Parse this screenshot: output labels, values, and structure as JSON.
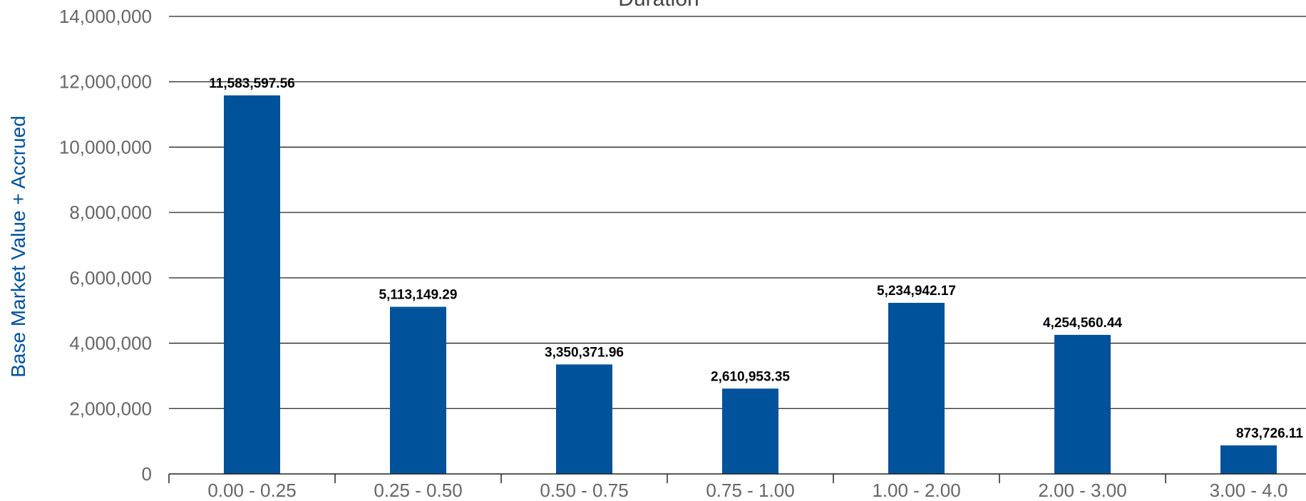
{
  "chart_data": {
    "type": "bar",
    "title": "Duration",
    "xlabel": "",
    "ylabel": "Base Market Value + Accrued",
    "categories": [
      "0.00 - 0.25",
      "0.25 - 0.50",
      "0.50 - 0.75",
      "0.75 - 1.00",
      "1.00 - 2.00",
      "2.00 - 3.00",
      "3.00 - 4.0"
    ],
    "values": [
      11583597.56,
      5113149.29,
      3350371.96,
      2610953.35,
      5234942.17,
      4254560.44,
      873726.11
    ],
    "value_labels": [
      "11,583,597.56",
      "5,113,149.29",
      "3,350,371.96",
      "2,610,953.35",
      "5,234,942.17",
      "4,254,560.44",
      "873,726.11"
    ],
    "ylim": [
      0,
      14000000
    ],
    "yticks": [
      0,
      2000000,
      4000000,
      6000000,
      8000000,
      10000000,
      12000000,
      14000000
    ],
    "ytick_labels": [
      "0",
      "2,000,000",
      "4,000,000",
      "6,000,000",
      "8,000,000",
      "10,000,000",
      "12,000,000",
      "14,000,000"
    ],
    "grid": true,
    "legend": "none",
    "bar_color": "#00529b"
  }
}
